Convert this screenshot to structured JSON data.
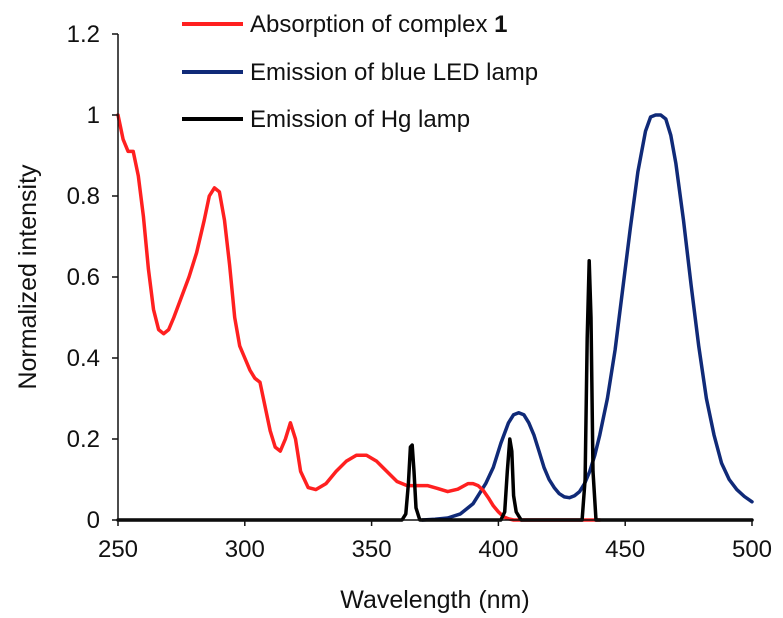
{
  "chart_data": {
    "type": "line",
    "xlabel": "Wavelength (nm)",
    "ylabel": "Normalized intensity",
    "xlim": [
      250,
      500
    ],
    "ylim": [
      0,
      1.2
    ],
    "x_ticks": [
      "250",
      "300",
      "350",
      "400",
      "450",
      "500"
    ],
    "y_ticks": [
      "0",
      "0.2",
      "0.4",
      "0.6",
      "0.8",
      "1",
      "1.2"
    ],
    "grid": false,
    "legend_position": "top",
    "series": [
      {
        "name": "Absorption of complex 1",
        "name_plain": "Absorption of complex ",
        "name_bold": "1",
        "color": "#ff2020",
        "x": [
          250,
          252,
          254,
          256,
          258,
          260,
          262,
          264,
          266,
          268,
          270,
          272,
          275,
          278,
          281,
          284,
          286,
          288,
          290,
          292,
          294,
          296,
          298,
          300,
          302,
          304,
          306,
          308,
          310,
          312,
          314,
          316,
          318,
          320,
          322,
          325,
          328,
          332,
          336,
          340,
          344,
          348,
          352,
          356,
          360,
          364,
          368,
          372,
          376,
          380,
          384,
          388,
          390,
          392,
          394,
          396,
          398,
          400,
          402,
          404,
          406,
          408,
          410,
          420,
          430,
          440
        ],
        "y": [
          1.0,
          0.94,
          0.91,
          0.91,
          0.85,
          0.75,
          0.62,
          0.52,
          0.47,
          0.46,
          0.47,
          0.5,
          0.55,
          0.6,
          0.66,
          0.74,
          0.8,
          0.82,
          0.81,
          0.74,
          0.63,
          0.5,
          0.43,
          0.4,
          0.37,
          0.35,
          0.34,
          0.28,
          0.22,
          0.18,
          0.17,
          0.2,
          0.24,
          0.2,
          0.12,
          0.08,
          0.075,
          0.09,
          0.12,
          0.145,
          0.16,
          0.16,
          0.145,
          0.12,
          0.095,
          0.085,
          0.085,
          0.085,
          0.078,
          0.07,
          0.076,
          0.09,
          0.09,
          0.085,
          0.073,
          0.055,
          0.035,
          0.02,
          0.008,
          0.003,
          0.0,
          0.0,
          0.0,
          0.0,
          0.0,
          0.0
        ]
      },
      {
        "name": "Emission of blue LED lamp",
        "color": "#102a78",
        "x": [
          370,
          375,
          380,
          385,
          390,
          395,
          398,
          401,
          404,
          406,
          408,
          410,
          412,
          414,
          416,
          418,
          420,
          422,
          424,
          426,
          428,
          430,
          432,
          434,
          436,
          438,
          440,
          443,
          446,
          449,
          452,
          455,
          458,
          460,
          462,
          464,
          466,
          468,
          470,
          473,
          476,
          479,
          482,
          485,
          488,
          491,
          494,
          497,
          500
        ],
        "y": [
          0.0,
          0.002,
          0.005,
          0.015,
          0.04,
          0.09,
          0.13,
          0.19,
          0.24,
          0.26,
          0.265,
          0.26,
          0.24,
          0.21,
          0.17,
          0.13,
          0.1,
          0.08,
          0.065,
          0.057,
          0.055,
          0.06,
          0.07,
          0.09,
          0.12,
          0.16,
          0.21,
          0.3,
          0.42,
          0.57,
          0.72,
          0.86,
          0.96,
          0.995,
          1.0,
          1.0,
          0.99,
          0.95,
          0.88,
          0.74,
          0.58,
          0.43,
          0.3,
          0.21,
          0.14,
          0.1,
          0.075,
          0.058,
          0.045
        ]
      },
      {
        "name": "Emission of Hg lamp",
        "color": "#000000",
        "x": [
          250,
          362,
          363.5,
          364.5,
          365.3,
          366,
          366.7,
          367.5,
          369,
          401,
          402.5,
          403.5,
          404.5,
          405.3,
          406,
          407,
          408,
          409,
          433,
          434.2,
          435,
          435.8,
          436.5,
          437.3,
          438.5,
          500
        ],
        "y": [
          0.0,
          0.0,
          0.015,
          0.09,
          0.18,
          0.185,
          0.12,
          0.03,
          0.0,
          0.0,
          0.02,
          0.12,
          0.2,
          0.17,
          0.06,
          0.02,
          0.01,
          0.0,
          0.0,
          0.1,
          0.45,
          0.64,
          0.5,
          0.12,
          0.0,
          0.0
        ]
      }
    ]
  }
}
